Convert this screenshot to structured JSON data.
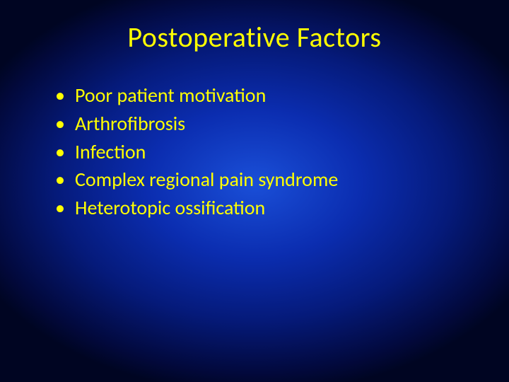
{
  "slide": {
    "title": "Postoperative Factors",
    "title_color": "#ffff00",
    "body_color": "#ffff00",
    "title_fontsize": 40,
    "body_fontsize": 28,
    "background": {
      "type": "radial-gradient",
      "center_color": "#1a4fd8",
      "mid_color": "#051a7a",
      "edge_color": "#000522"
    },
    "bullets": [
      "Poor patient motivation",
      "Arthrofibrosis",
      "Infection",
      "Complex regional pain syndrome",
      "Heterotopic ossification"
    ]
  }
}
